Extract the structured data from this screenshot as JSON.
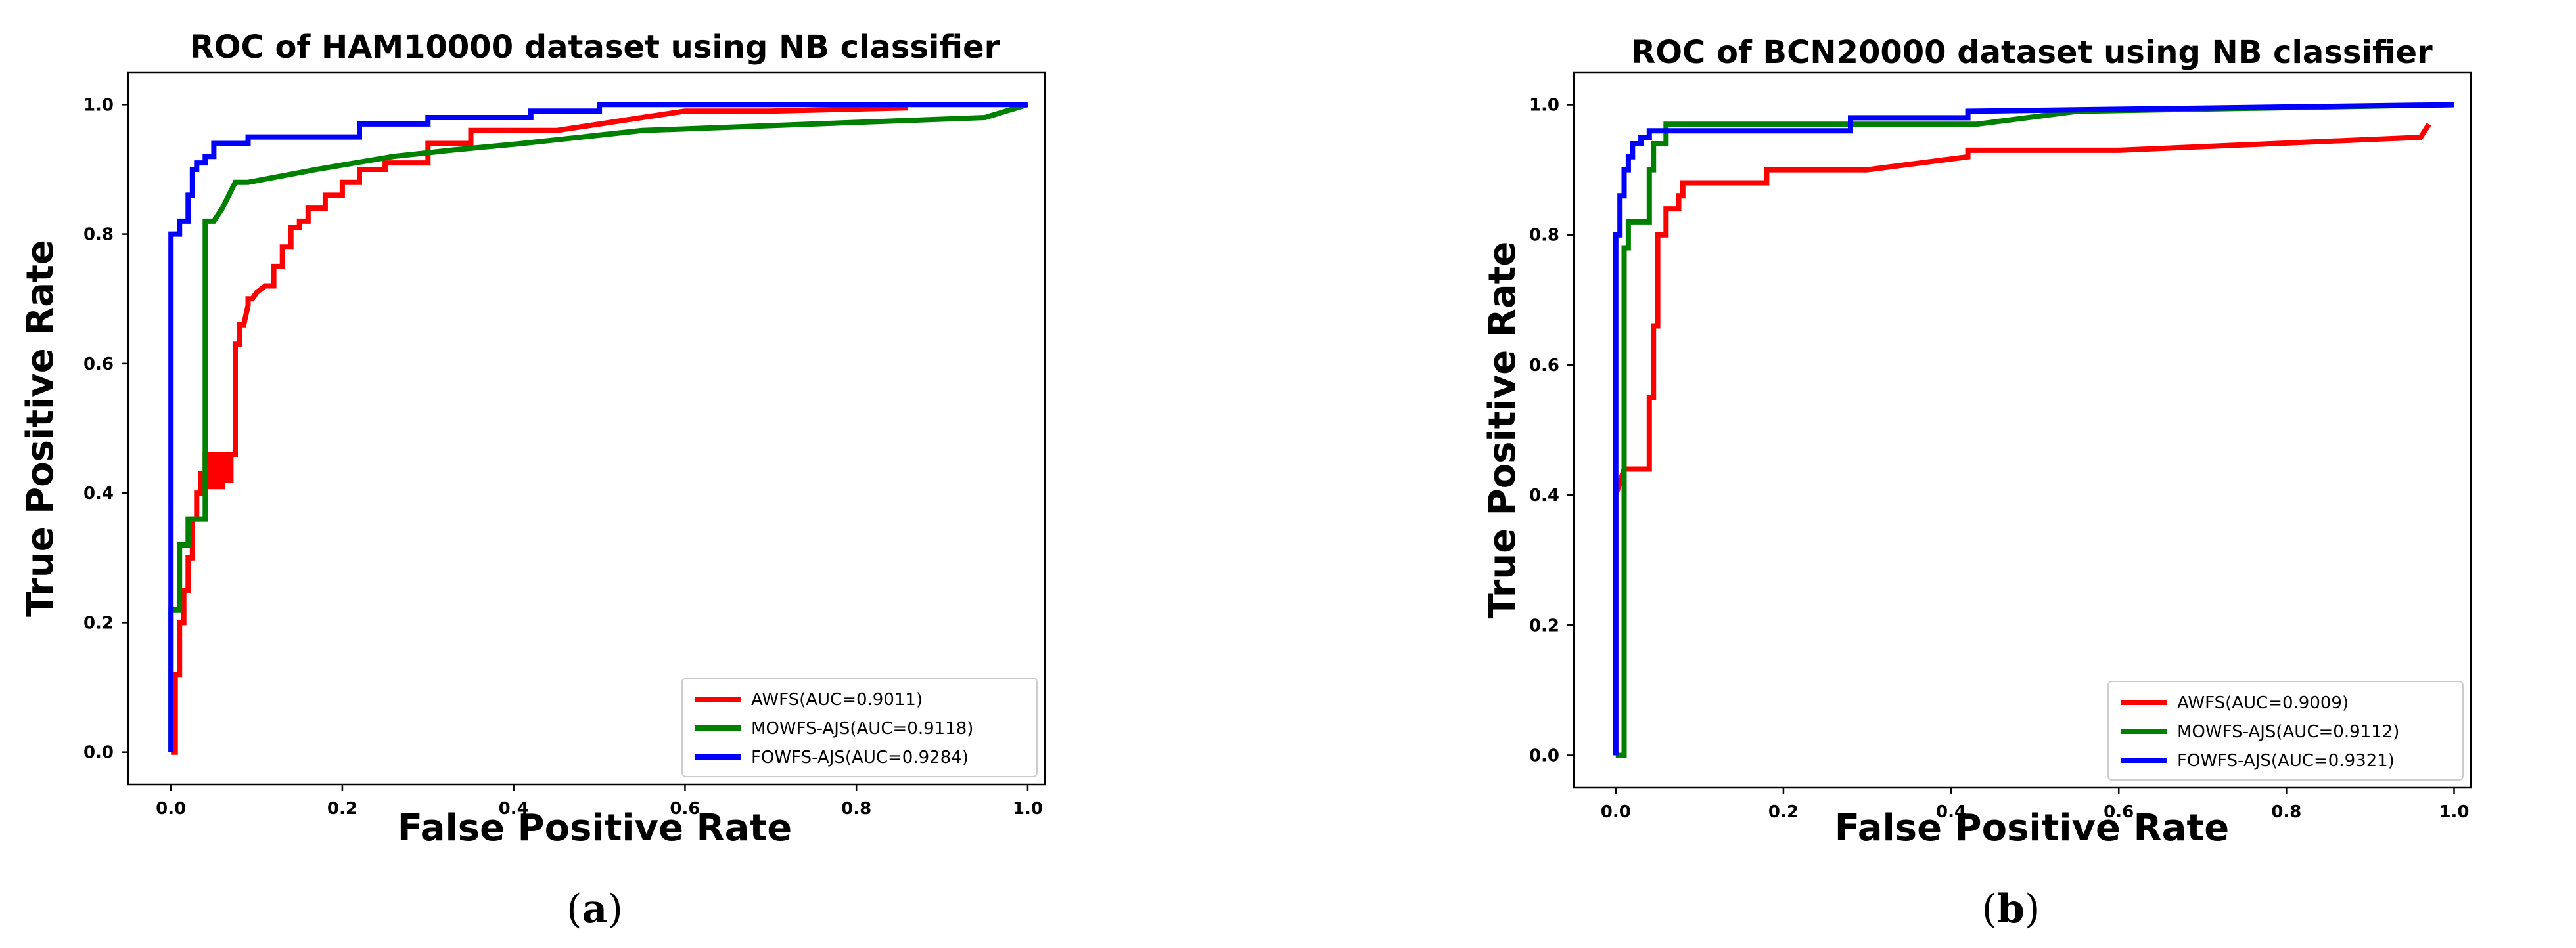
{
  "chart_data": [
    {
      "type": "line",
      "title": "ROC of HAM10000 dataset using NB classifier",
      "xlabel": "False Positive Rate",
      "ylabel": "True Positive Rate",
      "xlim": [
        -0.05,
        1.02
      ],
      "ylim": [
        -0.05,
        1.05
      ],
      "xticks": [
        "0.0",
        "0.2",
        "0.4",
        "0.6",
        "0.8",
        "1.0"
      ],
      "yticks": [
        "0.0",
        "0.2",
        "0.4",
        "0.6",
        "0.8",
        "1.0"
      ],
      "grid": false,
      "legend": "lower-right",
      "caption": {
        "open": "(",
        "letter": "a",
        "close": ")"
      },
      "series": [
        {
          "name": "AWFS(AUC=0.9011)",
          "color": "#ff0000",
          "x": [
            0.0,
            0.005,
            0.005,
            0.01,
            0.01,
            0.015,
            0.015,
            0.02,
            0.02,
            0.025,
            0.025,
            0.03,
            0.03,
            0.035,
            0.035,
            0.04,
            0.04,
            0.045,
            0.045,
            0.05,
            0.05,
            0.055,
            0.055,
            0.06,
            0.06,
            0.065,
            0.065,
            0.07,
            0.07,
            0.075,
            0.075,
            0.08,
            0.08,
            0.085,
            0.09,
            0.09,
            0.095,
            0.1,
            0.1,
            0.11,
            0.12,
            0.12,
            0.13,
            0.13,
            0.14,
            0.14,
            0.15,
            0.15,
            0.16,
            0.16,
            0.18,
            0.18,
            0.2,
            0.2,
            0.22,
            0.22,
            0.25,
            0.25,
            0.3,
            0.3,
            0.35,
            0.35,
            0.45,
            0.5,
            0.55,
            0.6,
            0.7,
            0.86
          ],
          "y": [
            0.0,
            0.0,
            0.12,
            0.12,
            0.2,
            0.2,
            0.25,
            0.25,
            0.3,
            0.3,
            0.36,
            0.36,
            0.4,
            0.4,
            0.43,
            0.43,
            0.46,
            0.46,
            0.41,
            0.41,
            0.46,
            0.46,
            0.41,
            0.41,
            0.46,
            0.46,
            0.42,
            0.42,
            0.46,
            0.46,
            0.63,
            0.63,
            0.66,
            0.66,
            0.69,
            0.7,
            0.7,
            0.71,
            0.71,
            0.72,
            0.72,
            0.75,
            0.75,
            0.78,
            0.78,
            0.81,
            0.81,
            0.82,
            0.82,
            0.84,
            0.84,
            0.86,
            0.86,
            0.88,
            0.88,
            0.9,
            0.9,
            0.91,
            0.91,
            0.94,
            0.94,
            0.96,
            0.96,
            0.97,
            0.98,
            0.99,
            0.99,
            0.995
          ]
        },
        {
          "name": "MOWFS-AJS(AUC=0.9118)",
          "color": "#008000",
          "x": [
            0.0,
            0.0,
            0.01,
            0.01,
            0.02,
            0.02,
            0.04,
            0.04,
            0.045,
            0.05,
            0.05,
            0.06,
            0.06,
            0.075,
            0.075,
            0.09,
            0.09,
            0.17,
            0.17,
            0.26,
            0.26,
            0.33,
            0.33,
            0.41,
            0.41,
            0.55,
            0.55,
            0.95,
            0.95,
            1.0
          ],
          "y": [
            0.0,
            0.22,
            0.22,
            0.32,
            0.32,
            0.36,
            0.36,
            0.82,
            0.82,
            0.82,
            0.82,
            0.84,
            0.84,
            0.88,
            0.88,
            0.88,
            0.88,
            0.9,
            0.9,
            0.92,
            0.92,
            0.93,
            0.93,
            0.94,
            0.94,
            0.96,
            0.96,
            0.98,
            0.98,
            1.0
          ]
        },
        {
          "name": "FOWFS-AJS(AUC=0.9284)",
          "color": "#0000ff",
          "x": [
            0.0,
            0.0,
            0.01,
            0.01,
            0.02,
            0.02,
            0.025,
            0.025,
            0.03,
            0.03,
            0.04,
            0.04,
            0.05,
            0.05,
            0.09,
            0.09,
            0.22,
            0.22,
            0.3,
            0.3,
            0.42,
            0.42,
            0.5,
            0.5,
            1.0
          ],
          "y": [
            0.0,
            0.8,
            0.8,
            0.82,
            0.82,
            0.86,
            0.86,
            0.9,
            0.9,
            0.91,
            0.91,
            0.92,
            0.92,
            0.94,
            0.94,
            0.95,
            0.95,
            0.97,
            0.97,
            0.98,
            0.98,
            0.99,
            0.99,
            1.0,
            1.0
          ]
        }
      ]
    },
    {
      "type": "line",
      "title": "ROC of BCN20000 dataset using NB classifier",
      "xlabel": "False Positive Rate",
      "ylabel": "True Positive Rate",
      "xlim": [
        -0.05,
        1.02
      ],
      "ylim": [
        -0.05,
        1.05
      ],
      "xticks": [
        "0.0",
        "0.2",
        "0.4",
        "0.6",
        "0.8",
        "1.0"
      ],
      "yticks": [
        "0.0",
        "0.2",
        "0.4",
        "0.6",
        "0.8",
        "1.0"
      ],
      "grid": false,
      "legend": "lower-right",
      "caption": {
        "open": "(",
        "letter": "b",
        "close": ")"
      },
      "series": [
        {
          "name": "AWFS(AUC=0.9009)",
          "color": "#ff0000",
          "x": [
            0.0,
            0.0,
            0.01,
            0.02,
            0.04,
            0.04,
            0.045,
            0.045,
            0.05,
            0.05,
            0.06,
            0.06,
            0.075,
            0.075,
            0.08,
            0.08,
            0.18,
            0.18,
            0.3,
            0.42,
            0.42,
            0.6,
            0.96,
            0.97
          ],
          "y": [
            0.0,
            0.4,
            0.44,
            0.44,
            0.44,
            0.55,
            0.55,
            0.66,
            0.66,
            0.8,
            0.8,
            0.84,
            0.84,
            0.86,
            0.86,
            0.88,
            0.88,
            0.9,
            0.9,
            0.92,
            0.93,
            0.93,
            0.95,
            0.97
          ]
        },
        {
          "name": "MOWFS-AJS(AUC=0.9112)",
          "color": "#008000",
          "x": [
            0.0,
            0.01,
            0.01,
            0.015,
            0.015,
            0.04,
            0.04,
            0.045,
            0.045,
            0.06,
            0.06,
            0.27,
            0.27,
            0.43,
            0.43,
            0.55,
            1.0
          ],
          "y": [
            0.0,
            0.0,
            0.78,
            0.78,
            0.82,
            0.82,
            0.9,
            0.9,
            0.94,
            0.94,
            0.97,
            0.97,
            0.97,
            0.97,
            0.97,
            0.99,
            1.0
          ]
        },
        {
          "name": "FOWFS-AJS(AUC=0.9321)",
          "color": "#0000ff",
          "x": [
            0.0,
            0.0,
            0.005,
            0.005,
            0.01,
            0.01,
            0.015,
            0.015,
            0.02,
            0.02,
            0.03,
            0.03,
            0.04,
            0.04,
            0.28,
            0.28,
            0.42,
            0.42,
            1.0
          ],
          "y": [
            0.0,
            0.8,
            0.8,
            0.86,
            0.86,
            0.9,
            0.9,
            0.92,
            0.92,
            0.94,
            0.94,
            0.95,
            0.95,
            0.96,
            0.96,
            0.98,
            0.98,
            0.99,
            1.0
          ]
        }
      ]
    }
  ]
}
